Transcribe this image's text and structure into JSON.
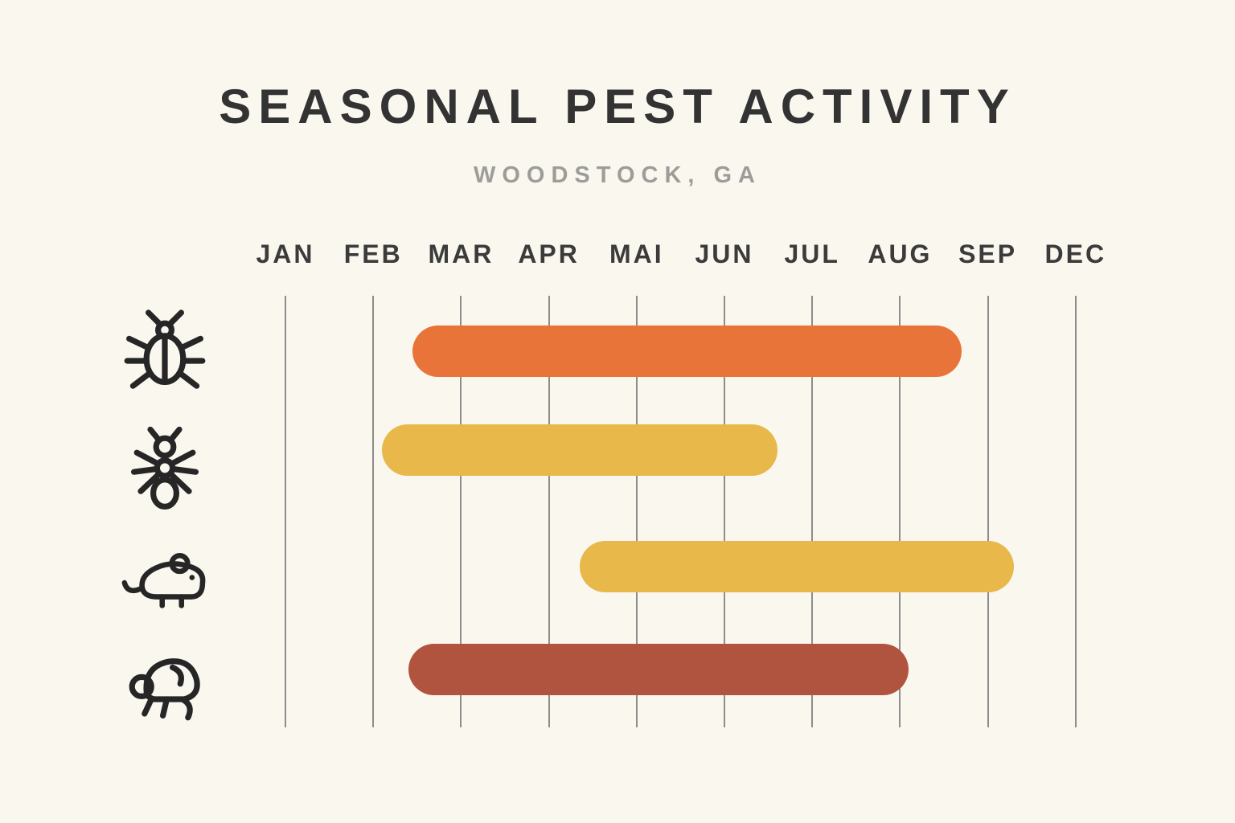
{
  "title": "SEASONAL PEST ACTIVITY",
  "subtitle": "WOODSTOCK, GA",
  "chart_data": {
    "type": "bar",
    "subtype": "horizontal-gantt-timeline",
    "title": "SEASONAL PEST ACTIVITY",
    "subtitle": "WOODSTOCK, GA",
    "x_axis": {
      "tick_labels": [
        "JAN",
        "FEB",
        "MAR",
        "APR",
        "MAI",
        "JUN",
        "JUL",
        "AUG",
        "SEP",
        "DEC"
      ],
      "label_position": "top",
      "grid": true,
      "note": "month index units, 0 = JAN gridline"
    },
    "rows": [
      {
        "pest": "beetle",
        "icon": "beetle-icon",
        "start_month": 1.45,
        "end_month": 7.7,
        "color": "#E97439"
      },
      {
        "pest": "ant",
        "icon": "ant-icon",
        "start_month": 1.1,
        "end_month": 5.6,
        "color": "#E8B84B"
      },
      {
        "pest": "mouse",
        "icon": "mouse-icon",
        "start_month": 3.35,
        "end_month": 8.3,
        "color": "#E8B84B"
      },
      {
        "pest": "flea",
        "icon": "flea-icon",
        "start_month": 1.4,
        "end_month": 7.1,
        "color": "#B1543F"
      }
    ],
    "legend": "none",
    "colors": {
      "background": "#FAF7EF",
      "title": "#333333",
      "subtitle": "#9C9C99",
      "axis_label": "#3B3B3B",
      "gridline": "#8D8D8D",
      "icon_stroke": "#262626"
    }
  }
}
